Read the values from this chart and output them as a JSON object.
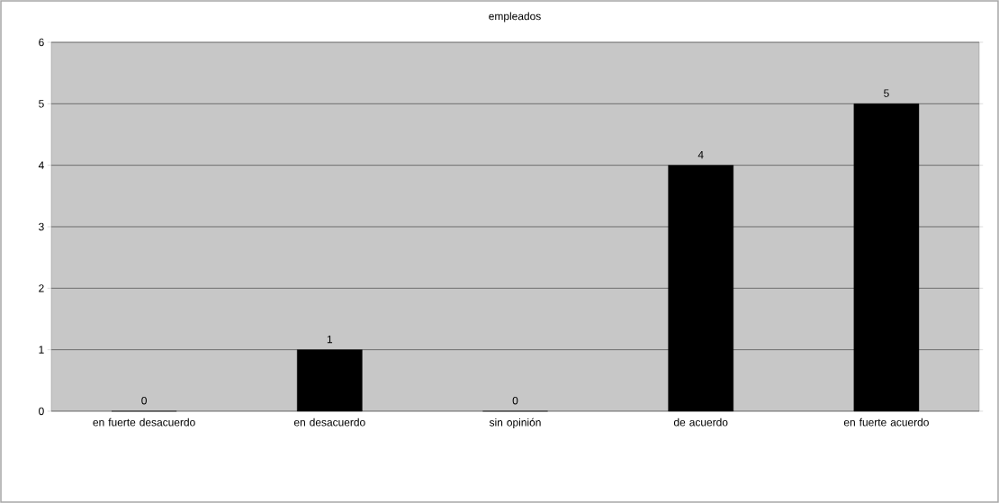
{
  "chart_data": {
    "type": "bar",
    "title": "empleados",
    "categories": [
      "en fuerte desacuerdo",
      "en desacuerdo",
      "sin opinión",
      "de acuerdo",
      "en fuerte acuerdo"
    ],
    "values": [
      0,
      1,
      0,
      4,
      5
    ],
    "color": "#000000",
    "ylim": [
      0,
      6
    ],
    "yticks": [
      0,
      1,
      2,
      3,
      4,
      5,
      6
    ],
    "grid": "y",
    "data_labels": true
  }
}
